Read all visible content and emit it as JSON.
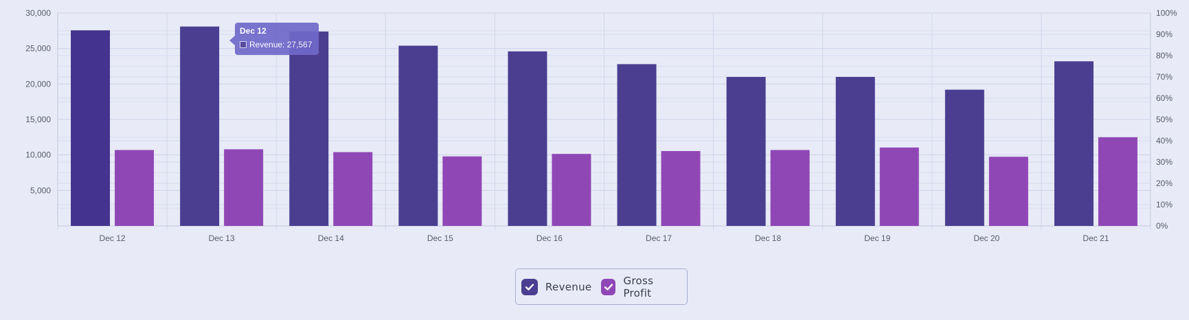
{
  "chart_data": {
    "type": "bar",
    "categories": [
      "Dec 12",
      "Dec 13",
      "Dec 14",
      "Dec 15",
      "Dec 16",
      "Dec 17",
      "Dec 18",
      "Dec 19",
      "Dec 20",
      "Dec 21"
    ],
    "series": [
      {
        "name": "Revenue",
        "color": "#4b3e91",
        "values": [
          27567,
          28100,
          27400,
          25400,
          24600,
          22800,
          21000,
          21000,
          19200,
          23200
        ]
      },
      {
        "name": "Gross Profit",
        "color": "#9047b6",
        "values": [
          10700,
          10800,
          10400,
          9800,
          10150,
          10550,
          10700,
          11050,
          9750,
          12500
        ]
      }
    ],
    "y_left": {
      "min": 0,
      "max": 30000,
      "ticks": [
        5000,
        10000,
        15000,
        20000,
        25000,
        30000
      ],
      "tick_labels": [
        "5,000",
        "10,000",
        "15,000",
        "20,000",
        "25,000",
        "30,000"
      ]
    },
    "y_right": {
      "min": 0,
      "max": 100,
      "ticks": [
        0,
        10,
        20,
        30,
        40,
        50,
        60,
        70,
        80,
        90,
        100
      ],
      "tick_labels": [
        "0%",
        "10%",
        "20%",
        "30%",
        "40%",
        "50%",
        "60%",
        "70%",
        "80%",
        "90%",
        "100%"
      ]
    },
    "highlighted_category": "Dec 12",
    "grid": true,
    "legend_position": "bottom-center"
  },
  "tooltip": {
    "title": "Dec 12",
    "label": "Revenue: 27,567"
  },
  "legend": {
    "items": [
      {
        "label": "Revenue",
        "color": "#4b3e91"
      },
      {
        "label": "Gross Profit",
        "color": "#9047b6"
      }
    ]
  }
}
